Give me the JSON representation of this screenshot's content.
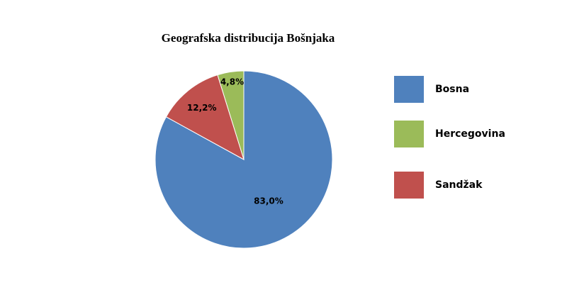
{
  "chart_data": {
    "type": "pie",
    "title": "Geografska distribucija Bošnjaka",
    "categories": [
      "Bosna",
      "Hercegovina",
      "Sandžak"
    ],
    "values": [
      83.0,
      4.8,
      12.2
    ],
    "value_labels": [
      "83,0%",
      "4,8%",
      "12,2%"
    ],
    "colors": [
      "#4f81bd",
      "#9bbb59",
      "#c0504d"
    ],
    "legend": "right"
  }
}
